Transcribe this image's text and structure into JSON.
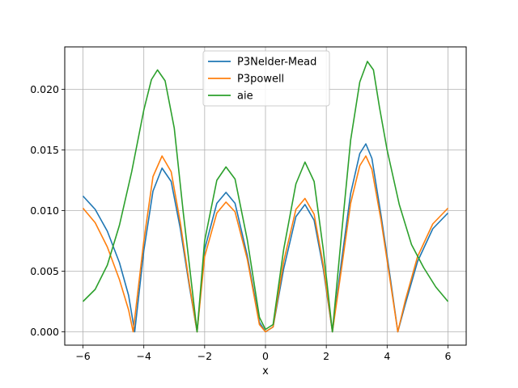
{
  "chart_data": {
    "type": "line",
    "title": "",
    "xlabel": "x",
    "ylabel": "",
    "xlim": [
      -6.6,
      6.6
    ],
    "ylim": [
      -0.0011,
      0.0235
    ],
    "xticks": [
      -6,
      -4,
      -2,
      0,
      2,
      4,
      6
    ],
    "xtick_labels": [
      "−6",
      "−4",
      "−2",
      "0",
      "2",
      "4",
      "6"
    ],
    "yticks": [
      0.0,
      0.005,
      0.01,
      0.015,
      0.02
    ],
    "ytick_labels": [
      "0.000",
      "0.005",
      "0.010",
      "0.015",
      "0.020"
    ],
    "grid": true,
    "legend_position": "upper-center",
    "series": [
      {
        "name": "P3Nelder-Mead",
        "color": "#1f77b4",
        "points": [
          [
            -6.0,
            0.0112
          ],
          [
            -5.6,
            0.0101
          ],
          [
            -5.2,
            0.0083
          ],
          [
            -4.8,
            0.0057
          ],
          [
            -4.5,
            0.003
          ],
          [
            -4.3,
            0.0
          ],
          [
            -4.0,
            0.0067
          ],
          [
            -3.7,
            0.0116
          ],
          [
            -3.4,
            0.0135
          ],
          [
            -3.1,
            0.0124
          ],
          [
            -2.8,
            0.0085
          ],
          [
            -2.5,
            0.0037
          ],
          [
            -2.25,
            0.0
          ],
          [
            -2.0,
            0.0068
          ],
          [
            -1.6,
            0.0106
          ],
          [
            -1.3,
            0.0115
          ],
          [
            -1.0,
            0.0106
          ],
          [
            -0.6,
            0.0063
          ],
          [
            -0.2,
            0.0008
          ],
          [
            0.0,
            0.0
          ],
          [
            0.25,
            0.0004
          ],
          [
            0.6,
            0.0052
          ],
          [
            1.0,
            0.0095
          ],
          [
            1.3,
            0.0105
          ],
          [
            1.6,
            0.0092
          ],
          [
            1.9,
            0.0052
          ],
          [
            2.2,
            0.0
          ],
          [
            2.5,
            0.0058
          ],
          [
            2.8,
            0.0114
          ],
          [
            3.1,
            0.0147
          ],
          [
            3.3,
            0.0155
          ],
          [
            3.5,
            0.0143
          ],
          [
            3.8,
            0.0096
          ],
          [
            4.1,
            0.0045
          ],
          [
            4.35,
            0.0
          ],
          [
            4.6,
            0.0023
          ],
          [
            5.0,
            0.0058
          ],
          [
            5.5,
            0.0085
          ],
          [
            6.0,
            0.0098
          ]
        ]
      },
      {
        "name": "P3powell",
        "color": "#ff7f0e",
        "points": [
          [
            -6.0,
            0.0102
          ],
          [
            -5.6,
            0.009
          ],
          [
            -5.2,
            0.007
          ],
          [
            -4.8,
            0.0043
          ],
          [
            -4.5,
            0.0018
          ],
          [
            -4.35,
            0.0
          ],
          [
            -4.0,
            0.0075
          ],
          [
            -3.7,
            0.0128
          ],
          [
            -3.4,
            0.0145
          ],
          [
            -3.1,
            0.0132
          ],
          [
            -2.8,
            0.009
          ],
          [
            -2.5,
            0.0039
          ],
          [
            -2.25,
            0.0
          ],
          [
            -2.0,
            0.0062
          ],
          [
            -1.6,
            0.0098
          ],
          [
            -1.3,
            0.0107
          ],
          [
            -1.0,
            0.0099
          ],
          [
            -0.6,
            0.006
          ],
          [
            -0.2,
            0.0006
          ],
          [
            0.0,
            0.0
          ],
          [
            0.25,
            0.0004
          ],
          [
            0.6,
            0.0058
          ],
          [
            1.0,
            0.0101
          ],
          [
            1.3,
            0.011
          ],
          [
            1.6,
            0.0097
          ],
          [
            1.9,
            0.0055
          ],
          [
            2.2,
            0.0
          ],
          [
            2.5,
            0.0052
          ],
          [
            2.8,
            0.0106
          ],
          [
            3.1,
            0.0137
          ],
          [
            3.3,
            0.0145
          ],
          [
            3.5,
            0.0134
          ],
          [
            3.8,
            0.0092
          ],
          [
            4.1,
            0.0042
          ],
          [
            4.35,
            0.0
          ],
          [
            4.6,
            0.0026
          ],
          [
            5.0,
            0.0062
          ],
          [
            5.5,
            0.0089
          ],
          [
            6.0,
            0.0102
          ]
        ]
      },
      {
        "name": "aie",
        "color": "#2ca02c",
        "points": [
          [
            -6.0,
            0.0025
          ],
          [
            -5.6,
            0.0035
          ],
          [
            -5.2,
            0.0055
          ],
          [
            -4.8,
            0.0088
          ],
          [
            -4.4,
            0.0132
          ],
          [
            -4.0,
            0.0183
          ],
          [
            -3.75,
            0.0208
          ],
          [
            -3.55,
            0.0216
          ],
          [
            -3.3,
            0.0207
          ],
          [
            -3.0,
            0.0168
          ],
          [
            -2.7,
            0.0098
          ],
          [
            -2.4,
            0.0033
          ],
          [
            -2.25,
            0.0
          ],
          [
            -2.0,
            0.0075
          ],
          [
            -1.6,
            0.0125
          ],
          [
            -1.3,
            0.0136
          ],
          [
            -1.0,
            0.0126
          ],
          [
            -0.6,
            0.0076
          ],
          [
            -0.2,
            0.0012
          ],
          [
            0.0,
            0.0002
          ],
          [
            0.25,
            0.0006
          ],
          [
            0.6,
            0.0068
          ],
          [
            1.0,
            0.0122
          ],
          [
            1.3,
            0.014
          ],
          [
            1.6,
            0.0124
          ],
          [
            1.9,
            0.0068
          ],
          [
            2.2,
            0.0
          ],
          [
            2.5,
            0.008
          ],
          [
            2.8,
            0.0158
          ],
          [
            3.1,
            0.0206
          ],
          [
            3.35,
            0.0223
          ],
          [
            3.55,
            0.0216
          ],
          [
            3.75,
            0.0185
          ],
          [
            4.0,
            0.015
          ],
          [
            4.4,
            0.0105
          ],
          [
            4.8,
            0.0072
          ],
          [
            5.2,
            0.0053
          ],
          [
            5.6,
            0.0037
          ],
          [
            6.0,
            0.0025
          ]
        ]
      }
    ]
  }
}
